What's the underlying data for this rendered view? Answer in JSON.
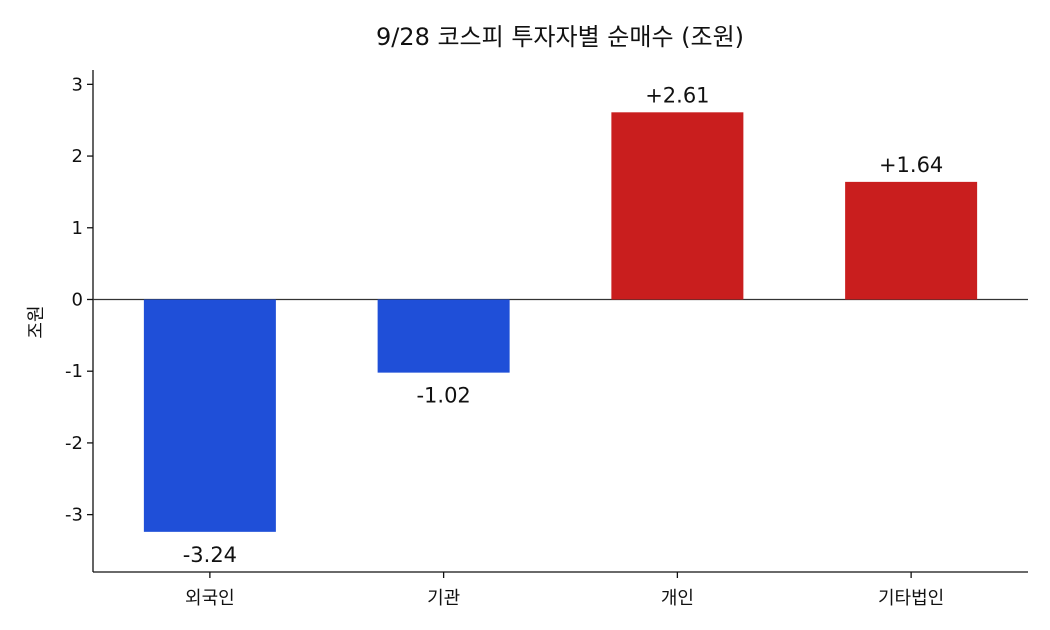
{
  "chart_data": {
    "type": "bar",
    "title": "9/28 코스피 투자자별 순매수 (조원)",
    "xlabel": "",
    "ylabel": "조원",
    "categories": [
      "외국인",
      "기관",
      "개인",
      "기타법인"
    ],
    "values": [
      -3.24,
      -1.02,
      2.61,
      1.64
    ],
    "value_labels": [
      "-3.24",
      "-1.02",
      "+2.61",
      "+1.64"
    ],
    "ylim": [
      -3.8,
      3.2
    ],
    "yticks": [
      -3,
      -2,
      -1,
      0,
      1,
      2,
      3
    ],
    "ytick_labels": [
      "-3",
      "-2",
      "-1",
      "0",
      "1",
      "2",
      "3"
    ],
    "colors": {
      "negative": "#1f4fd8",
      "positive": "#c91e1e"
    },
    "grid": false,
    "legend": "none"
  }
}
